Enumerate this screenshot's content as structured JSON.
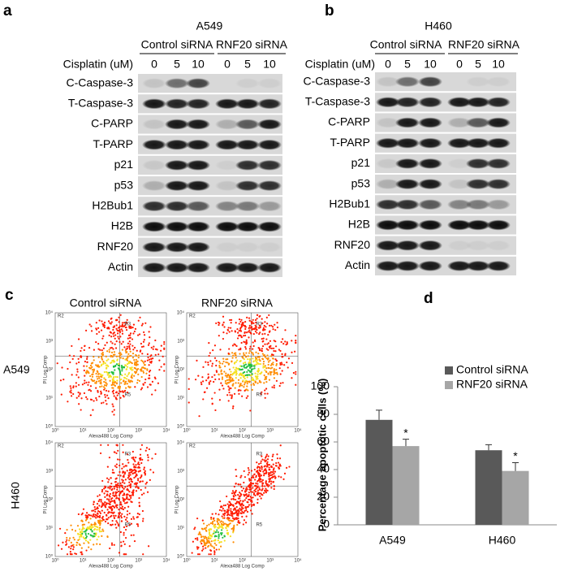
{
  "panel_a": {
    "label": "a",
    "cell_line": "A549",
    "groups": [
      "Control siRNA",
      "RNF20 siRNA"
    ],
    "treatment_label": "Cisplatin (uM)",
    "doses": [
      "0",
      "5",
      "10",
      "0",
      "5",
      "10"
    ],
    "proteins": [
      "C-Caspase-3",
      "T-Caspase-3",
      "C-PARP",
      "T-PARP",
      "p21",
      "p53",
      "H2Bub1",
      "H2B",
      "RNF20",
      "Actin"
    ]
  },
  "panel_b": {
    "label": "b",
    "cell_line": "H460",
    "groups": [
      "Control siRNA",
      "RNF20 siRNA"
    ],
    "treatment_label": "Cisplatin (uM)",
    "doses": [
      "0",
      "5",
      "10",
      "0",
      "5",
      "10"
    ],
    "proteins": [
      "C-Caspase-3",
      "T-Caspase-3",
      "C-PARP",
      "T-PARP",
      "p21",
      "p53",
      "H2Bub1",
      "H2B",
      "RNF20",
      "Actin"
    ]
  },
  "panel_c": {
    "label": "c",
    "columns": [
      "Control siRNA",
      "RNF20 siRNA"
    ],
    "rows": [
      "A549",
      "H460"
    ],
    "x_axis": "Alexa488 Log Comp",
    "y_axis": "PI Log Comp",
    "gates": [
      "R2",
      "R3",
      "R5"
    ],
    "ticks": [
      "10⁰",
      "10¹",
      "10²",
      "10³",
      "10⁴"
    ]
  },
  "chart_data": {
    "type": "bar",
    "label": "d",
    "y_label": "Percentage apoptotic cells (%)",
    "categories": [
      "A549",
      "H460"
    ],
    "series": [
      {
        "name": "Control siRNA",
        "color": "#595959",
        "values": [
          76,
          54
        ],
        "errors": [
          7,
          4
        ]
      },
      {
        "name": "RNF20 siRNA",
        "color": "#a6a6a6",
        "values": [
          57,
          39
        ],
        "errors": [
          5,
          6
        ],
        "significance": [
          "*",
          "*"
        ]
      }
    ],
    "ylim": [
      0,
      100
    ],
    "yticks": [
      0,
      20,
      40,
      60,
      80,
      100
    ]
  }
}
